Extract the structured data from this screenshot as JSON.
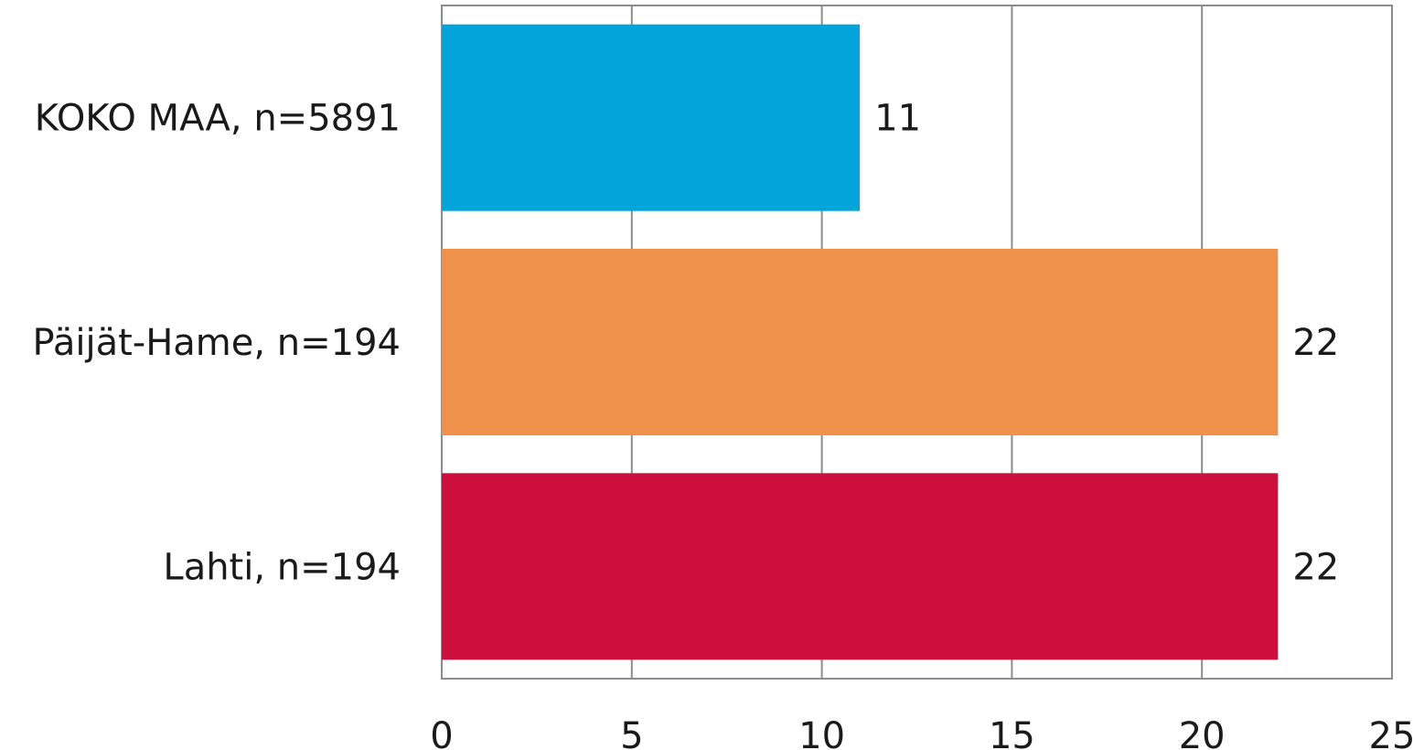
{
  "chart_data": {
    "type": "bar",
    "orientation": "horizontal",
    "categories": [
      "KOKO MAA, n=5891",
      "Päijät-Hame, n=194",
      "Lahti, n=194"
    ],
    "values": [
      11,
      22,
      22
    ],
    "bar_colors": [
      "#02a4d9",
      "#ef914b",
      "#cd0f3d"
    ],
    "xlim": [
      0,
      25
    ],
    "xticks": [
      "0",
      "5",
      "10",
      "15",
      "20",
      "25"
    ],
    "xlabel": "",
    "ylabel": "",
    "title": "",
    "grid": true,
    "data_labels": [
      "11",
      "22",
      "22"
    ]
  }
}
